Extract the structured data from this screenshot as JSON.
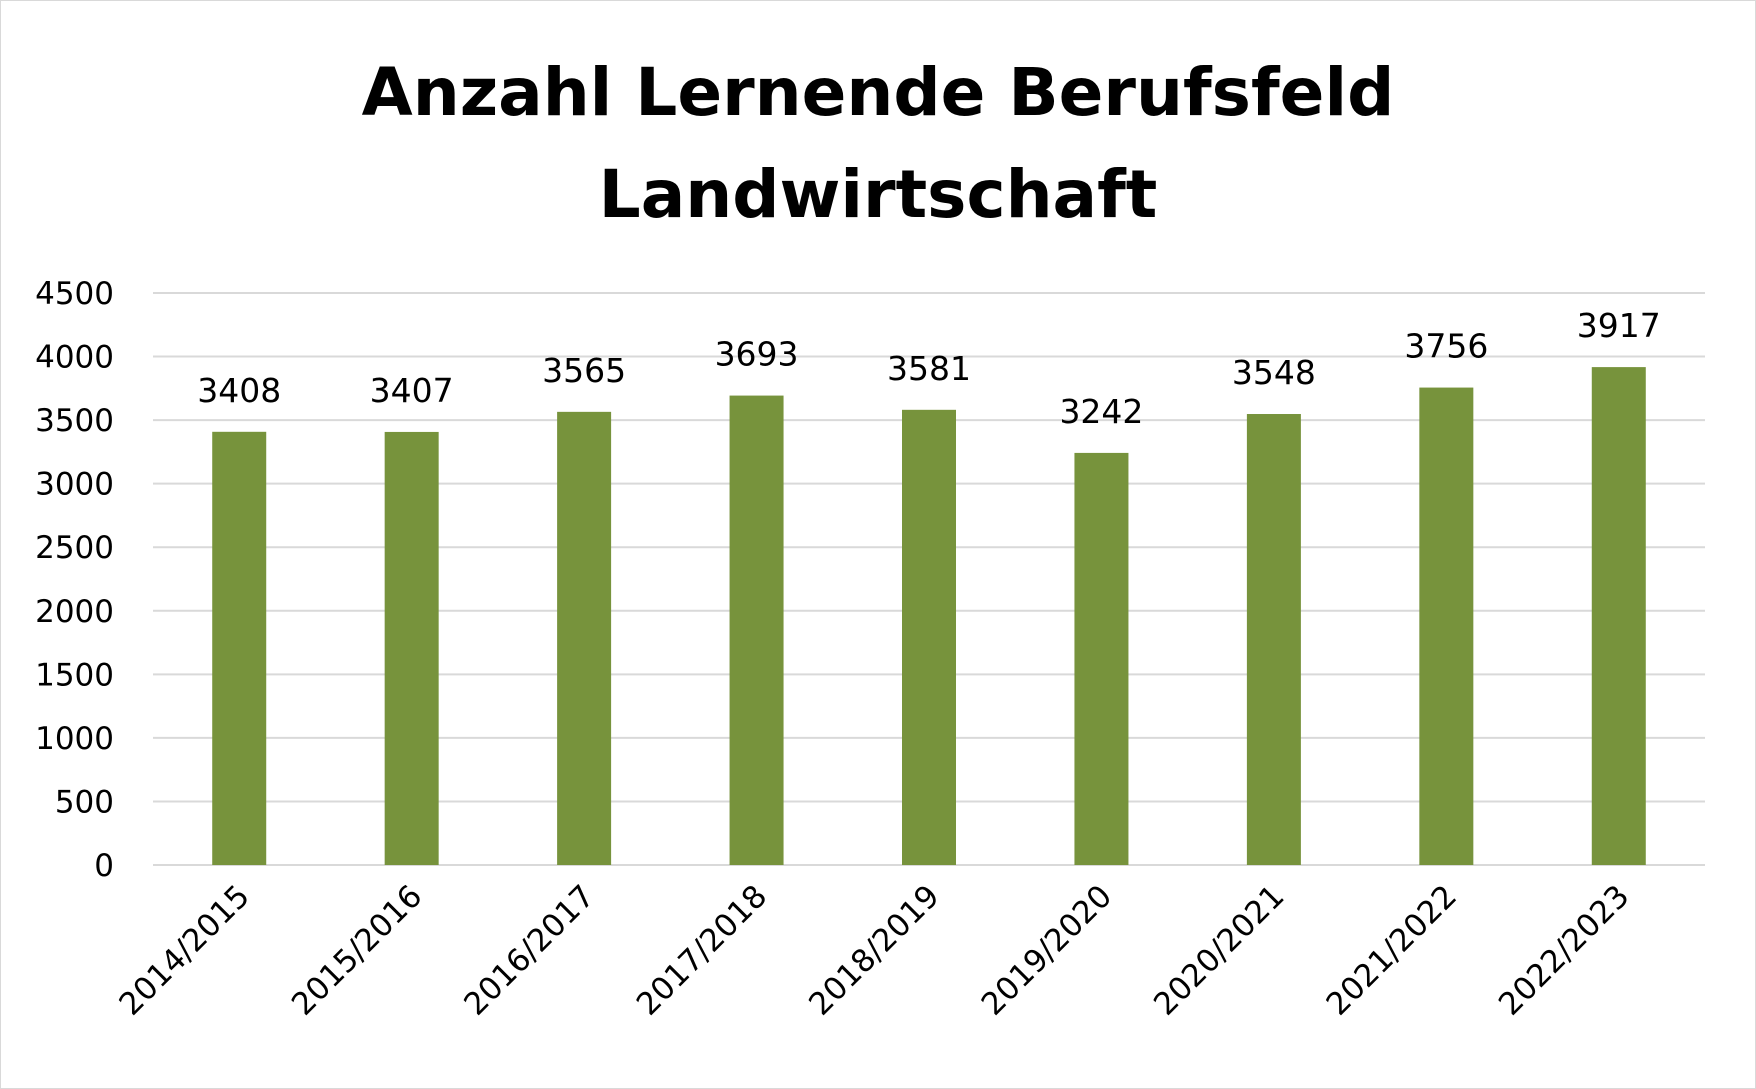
{
  "chart_data": {
    "type": "bar",
    "title": "Anzahl Lernende Berufsfeld\nLandwirtschaft",
    "xlabel": "",
    "ylabel": "",
    "categories": [
      "2014/2015",
      "2015/2016",
      "2016/2017",
      "2017/2018",
      "2018/2019",
      "2019/2020",
      "2020/2021",
      "2021/2022",
      "2022/2023"
    ],
    "values": [
      3408,
      3407,
      3565,
      3693,
      3581,
      3242,
      3548,
      3756,
      3917
    ],
    "data_labels": [
      "3408",
      "3407",
      "3565",
      "3693",
      "3581",
      "3242",
      "3548",
      "3756",
      "3917"
    ],
    "ylim": [
      0,
      4500
    ],
    "yticks": [
      0,
      500,
      1000,
      1500,
      2000,
      2500,
      3000,
      3500,
      4000,
      4500
    ],
    "ytick_labels": [
      "0",
      "500",
      "1000",
      "1500",
      "2000",
      "2500",
      "3000",
      "3500",
      "4000",
      "4500"
    ],
    "grid": true,
    "legend": "none",
    "bar_color": "#77933c",
    "grid_color": "#d9d9d9"
  }
}
